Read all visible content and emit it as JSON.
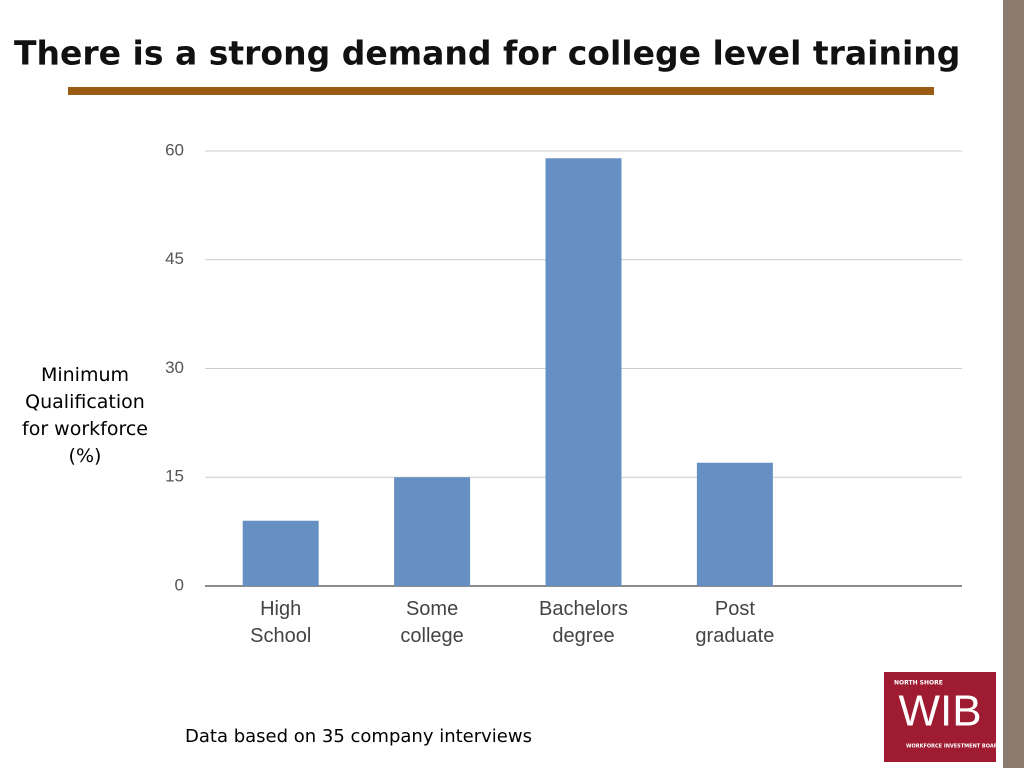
{
  "chart_data": {
    "type": "bar",
    "title": "There is a strong demand for college level training",
    "y_label": "Minimum Qualification for workforce (%)",
    "categories": [
      "High School",
      "Some college",
      "Bachelors degree",
      "Post graduate"
    ],
    "values": [
      9,
      15,
      59,
      17
    ],
    "color": "#6690c4",
    "ylim": [
      0,
      60
    ],
    "yticks": [
      0,
      15,
      30,
      45,
      60
    ],
    "grid": true,
    "note": "Data based on 35 company interviews"
  },
  "logo": {
    "top": "NORTH SHORE",
    "main": "WIB",
    "bottom": "WORKFORCE INVESTMENT BOARD"
  }
}
